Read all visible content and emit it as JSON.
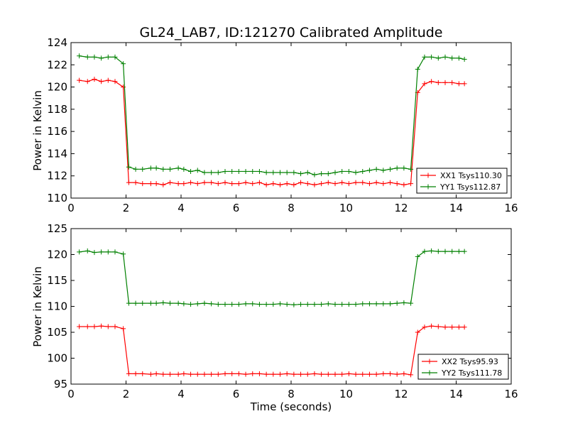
{
  "chart_data": [
    {
      "type": "line",
      "title": "GL24_LAB7, ID:121270 Calibrated Amplitude",
      "xlabel": "",
      "ylabel": "Power in Kelvin",
      "xlim": [
        0,
        16
      ],
      "ylim": [
        110,
        124
      ],
      "xticks": [
        "0",
        "2",
        "4",
        "6",
        "8",
        "10",
        "12",
        "14",
        "16"
      ],
      "yticks": [
        "110",
        "112",
        "114",
        "116",
        "118",
        "120",
        "122",
        "124"
      ],
      "grid": false,
      "legend_position": "lower-right",
      "x": [
        0.3,
        0.6,
        0.85,
        1.1,
        1.35,
        1.6,
        1.9,
        2.1,
        2.35,
        2.6,
        2.9,
        3.1,
        3.35,
        3.6,
        3.9,
        4.1,
        4.35,
        4.6,
        4.85,
        5.1,
        5.35,
        5.6,
        5.85,
        6.1,
        6.35,
        6.6,
        6.85,
        7.1,
        7.35,
        7.6,
        7.85,
        8.1,
        8.35,
        8.6,
        8.85,
        9.1,
        9.35,
        9.6,
        9.85,
        10.1,
        10.35,
        10.6,
        10.85,
        11.1,
        11.35,
        11.6,
        11.85,
        12.1,
        12.35,
        12.6,
        12.85,
        13.1,
        13.35,
        13.6,
        13.85,
        14.1,
        14.3
      ],
      "series": [
        {
          "name": "XX1 Tsys110.30",
          "color": "#ff0000",
          "values": [
            120.6,
            120.5,
            120.7,
            120.5,
            120.6,
            120.5,
            120.0,
            111.4,
            111.4,
            111.3,
            111.3,
            111.3,
            111.2,
            111.4,
            111.3,
            111.3,
            111.4,
            111.3,
            111.4,
            111.4,
            111.3,
            111.4,
            111.3,
            111.3,
            111.4,
            111.3,
            111.4,
            111.2,
            111.3,
            111.2,
            111.3,
            111.2,
            111.4,
            111.3,
            111.2,
            111.3,
            111.4,
            111.3,
            111.4,
            111.3,
            111.4,
            111.4,
            111.3,
            111.4,
            111.3,
            111.4,
            111.3,
            111.2,
            111.3,
            119.5,
            120.3,
            120.5,
            120.4,
            120.4,
            120.4,
            120.3,
            120.3
          ]
        },
        {
          "name": "YY1 Tsys112.87",
          "color": "#008000",
          "values": [
            122.8,
            122.7,
            122.7,
            122.6,
            122.7,
            122.7,
            122.1,
            112.8,
            112.6,
            112.6,
            112.7,
            112.7,
            112.6,
            112.6,
            112.7,
            112.6,
            112.4,
            112.5,
            112.3,
            112.3,
            112.3,
            112.4,
            112.4,
            112.4,
            112.4,
            112.4,
            112.4,
            112.3,
            112.3,
            112.3,
            112.3,
            112.3,
            112.2,
            112.3,
            112.1,
            112.2,
            112.2,
            112.3,
            112.4,
            112.4,
            112.3,
            112.4,
            112.5,
            112.6,
            112.5,
            112.6,
            112.7,
            112.7,
            112.6,
            121.6,
            122.7,
            122.7,
            122.6,
            122.7,
            122.6,
            122.6,
            122.5
          ]
        }
      ]
    },
    {
      "type": "line",
      "title": "",
      "xlabel": "Time (seconds)",
      "ylabel": "Power in Kelvin",
      "xlim": [
        0,
        16
      ],
      "ylim": [
        95,
        125
      ],
      "xticks": [
        "0",
        "2",
        "4",
        "6",
        "8",
        "10",
        "12",
        "14",
        "16"
      ],
      "yticks": [
        "95",
        "100",
        "105",
        "110",
        "115",
        "120",
        "125"
      ],
      "grid": false,
      "legend_position": "lower-right",
      "x": [
        0.3,
        0.6,
        0.85,
        1.1,
        1.35,
        1.6,
        1.9,
        2.1,
        2.35,
        2.6,
        2.9,
        3.1,
        3.35,
        3.6,
        3.9,
        4.1,
        4.35,
        4.6,
        4.85,
        5.1,
        5.35,
        5.6,
        5.85,
        6.1,
        6.35,
        6.6,
        6.85,
        7.1,
        7.35,
        7.6,
        7.85,
        8.1,
        8.35,
        8.6,
        8.85,
        9.1,
        9.35,
        9.6,
        9.85,
        10.1,
        10.35,
        10.6,
        10.85,
        11.1,
        11.35,
        11.6,
        11.85,
        12.1,
        12.35,
        12.6,
        12.85,
        13.1,
        13.35,
        13.6,
        13.85,
        14.1,
        14.3
      ],
      "series": [
        {
          "name": "XX2 Tsys95.93",
          "color": "#ff0000",
          "values": [
            106.1,
            106.1,
            106.1,
            106.2,
            106.1,
            106.1,
            105.7,
            97.0,
            97.0,
            97.0,
            96.9,
            97.0,
            96.9,
            96.9,
            96.9,
            97.0,
            96.9,
            96.9,
            96.9,
            96.9,
            96.9,
            97.0,
            97.0,
            97.0,
            96.9,
            97.0,
            97.0,
            96.9,
            96.9,
            96.9,
            97.0,
            96.9,
            96.9,
            96.9,
            97.0,
            96.9,
            96.9,
            96.9,
            96.9,
            97.0,
            96.9,
            96.9,
            96.9,
            96.9,
            97.0,
            97.0,
            96.9,
            97.0,
            96.8,
            105.0,
            106.0,
            106.2,
            106.1,
            106.0,
            106.0,
            106.0,
            106.0
          ]
        },
        {
          "name": "YY2 Tsys111.78",
          "color": "#008000",
          "values": [
            120.5,
            120.7,
            120.4,
            120.5,
            120.5,
            120.5,
            120.1,
            110.6,
            110.6,
            110.6,
            110.6,
            110.6,
            110.7,
            110.6,
            110.6,
            110.5,
            110.4,
            110.5,
            110.6,
            110.5,
            110.4,
            110.4,
            110.4,
            110.4,
            110.5,
            110.5,
            110.4,
            110.4,
            110.4,
            110.5,
            110.4,
            110.3,
            110.4,
            110.4,
            110.4,
            110.4,
            110.5,
            110.4,
            110.4,
            110.4,
            110.4,
            110.5,
            110.5,
            110.5,
            110.5,
            110.5,
            110.6,
            110.7,
            110.6,
            119.6,
            120.6,
            120.7,
            120.6,
            120.6,
            120.6,
            120.6,
            120.6
          ]
        }
      ]
    }
  ]
}
